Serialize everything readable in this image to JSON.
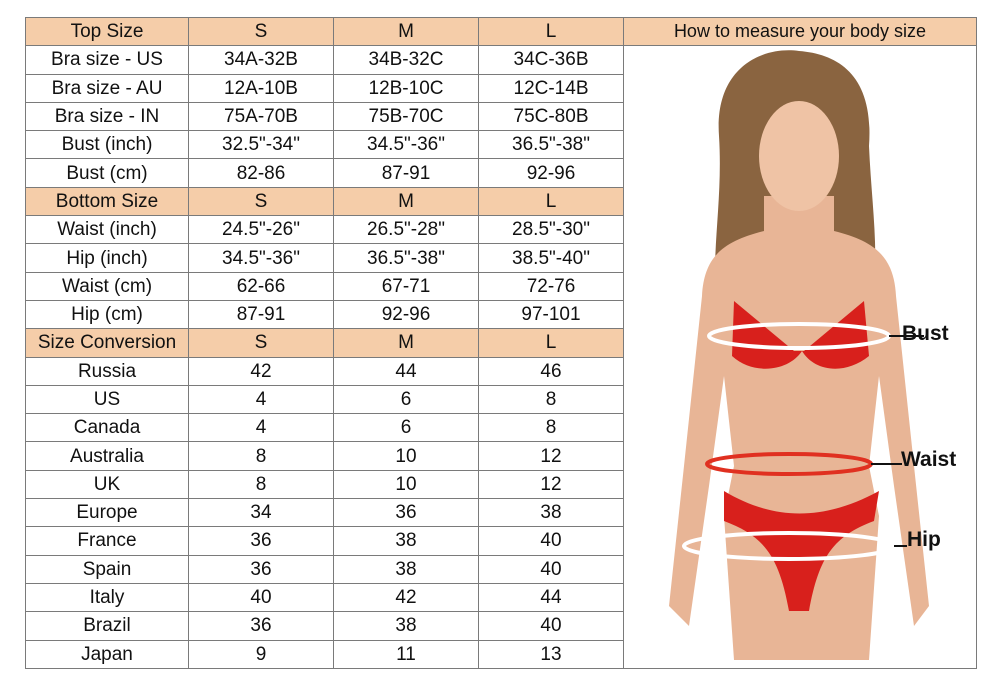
{
  "sections": [
    {
      "header": [
        "Top Size",
        "S",
        "M",
        "L"
      ],
      "rows": [
        [
          "Bra size - US",
          "34A-32B",
          "34B-32C",
          "34C-36B"
        ],
        [
          "Bra size - AU",
          "12A-10B",
          "12B-10C",
          "12C-14B"
        ],
        [
          "Bra size - IN",
          "75A-70B",
          "75B-70C",
          "75C-80B"
        ],
        [
          "Bust (inch)",
          "32.5\"-34\"",
          "34.5\"-36\"",
          "36.5\"-38\""
        ],
        [
          "Bust (cm)",
          "82-86",
          "87-91",
          "92-96"
        ]
      ]
    },
    {
      "header": [
        "Bottom Size",
        "S",
        "M",
        "L"
      ],
      "rows": [
        [
          "Waist (inch)",
          "24.5\"-26\"",
          "26.5\"-28\"",
          "28.5\"-30\""
        ],
        [
          "Hip (inch)",
          "34.5\"-36\"",
          "36.5\"-38\"",
          "38.5\"-40\""
        ],
        [
          "Waist (cm)",
          "62-66",
          "67-71",
          "72-76"
        ],
        [
          "Hip (cm)",
          "87-91",
          "92-96",
          "97-101"
        ]
      ]
    },
    {
      "header": [
        "Size Conversion",
        "S",
        "M",
        "L"
      ],
      "rows": [
        [
          "Russia",
          "42",
          "44",
          "46"
        ],
        [
          "US",
          "4",
          "6",
          "8"
        ],
        [
          "Canada",
          "4",
          "6",
          "8"
        ],
        [
          "Australia",
          "8",
          "10",
          "12"
        ],
        [
          "UK",
          "8",
          "10",
          "12"
        ],
        [
          "Europe",
          "34",
          "36",
          "38"
        ],
        [
          "France",
          "36",
          "38",
          "40"
        ],
        [
          "Spain",
          "36",
          "38",
          "40"
        ],
        [
          "Italy",
          "40",
          "42",
          "44"
        ],
        [
          "Brazil",
          "36",
          "38",
          "40"
        ],
        [
          "Japan",
          "9",
          "11",
          "13"
        ]
      ]
    }
  ],
  "measure": {
    "title": "How to measure your body size",
    "labels": {
      "bust": "Bust",
      "waist": "Waist",
      "hip": "Hip"
    }
  },
  "colors": {
    "header": "#f5cda9",
    "bikini": "#d8201c"
  }
}
